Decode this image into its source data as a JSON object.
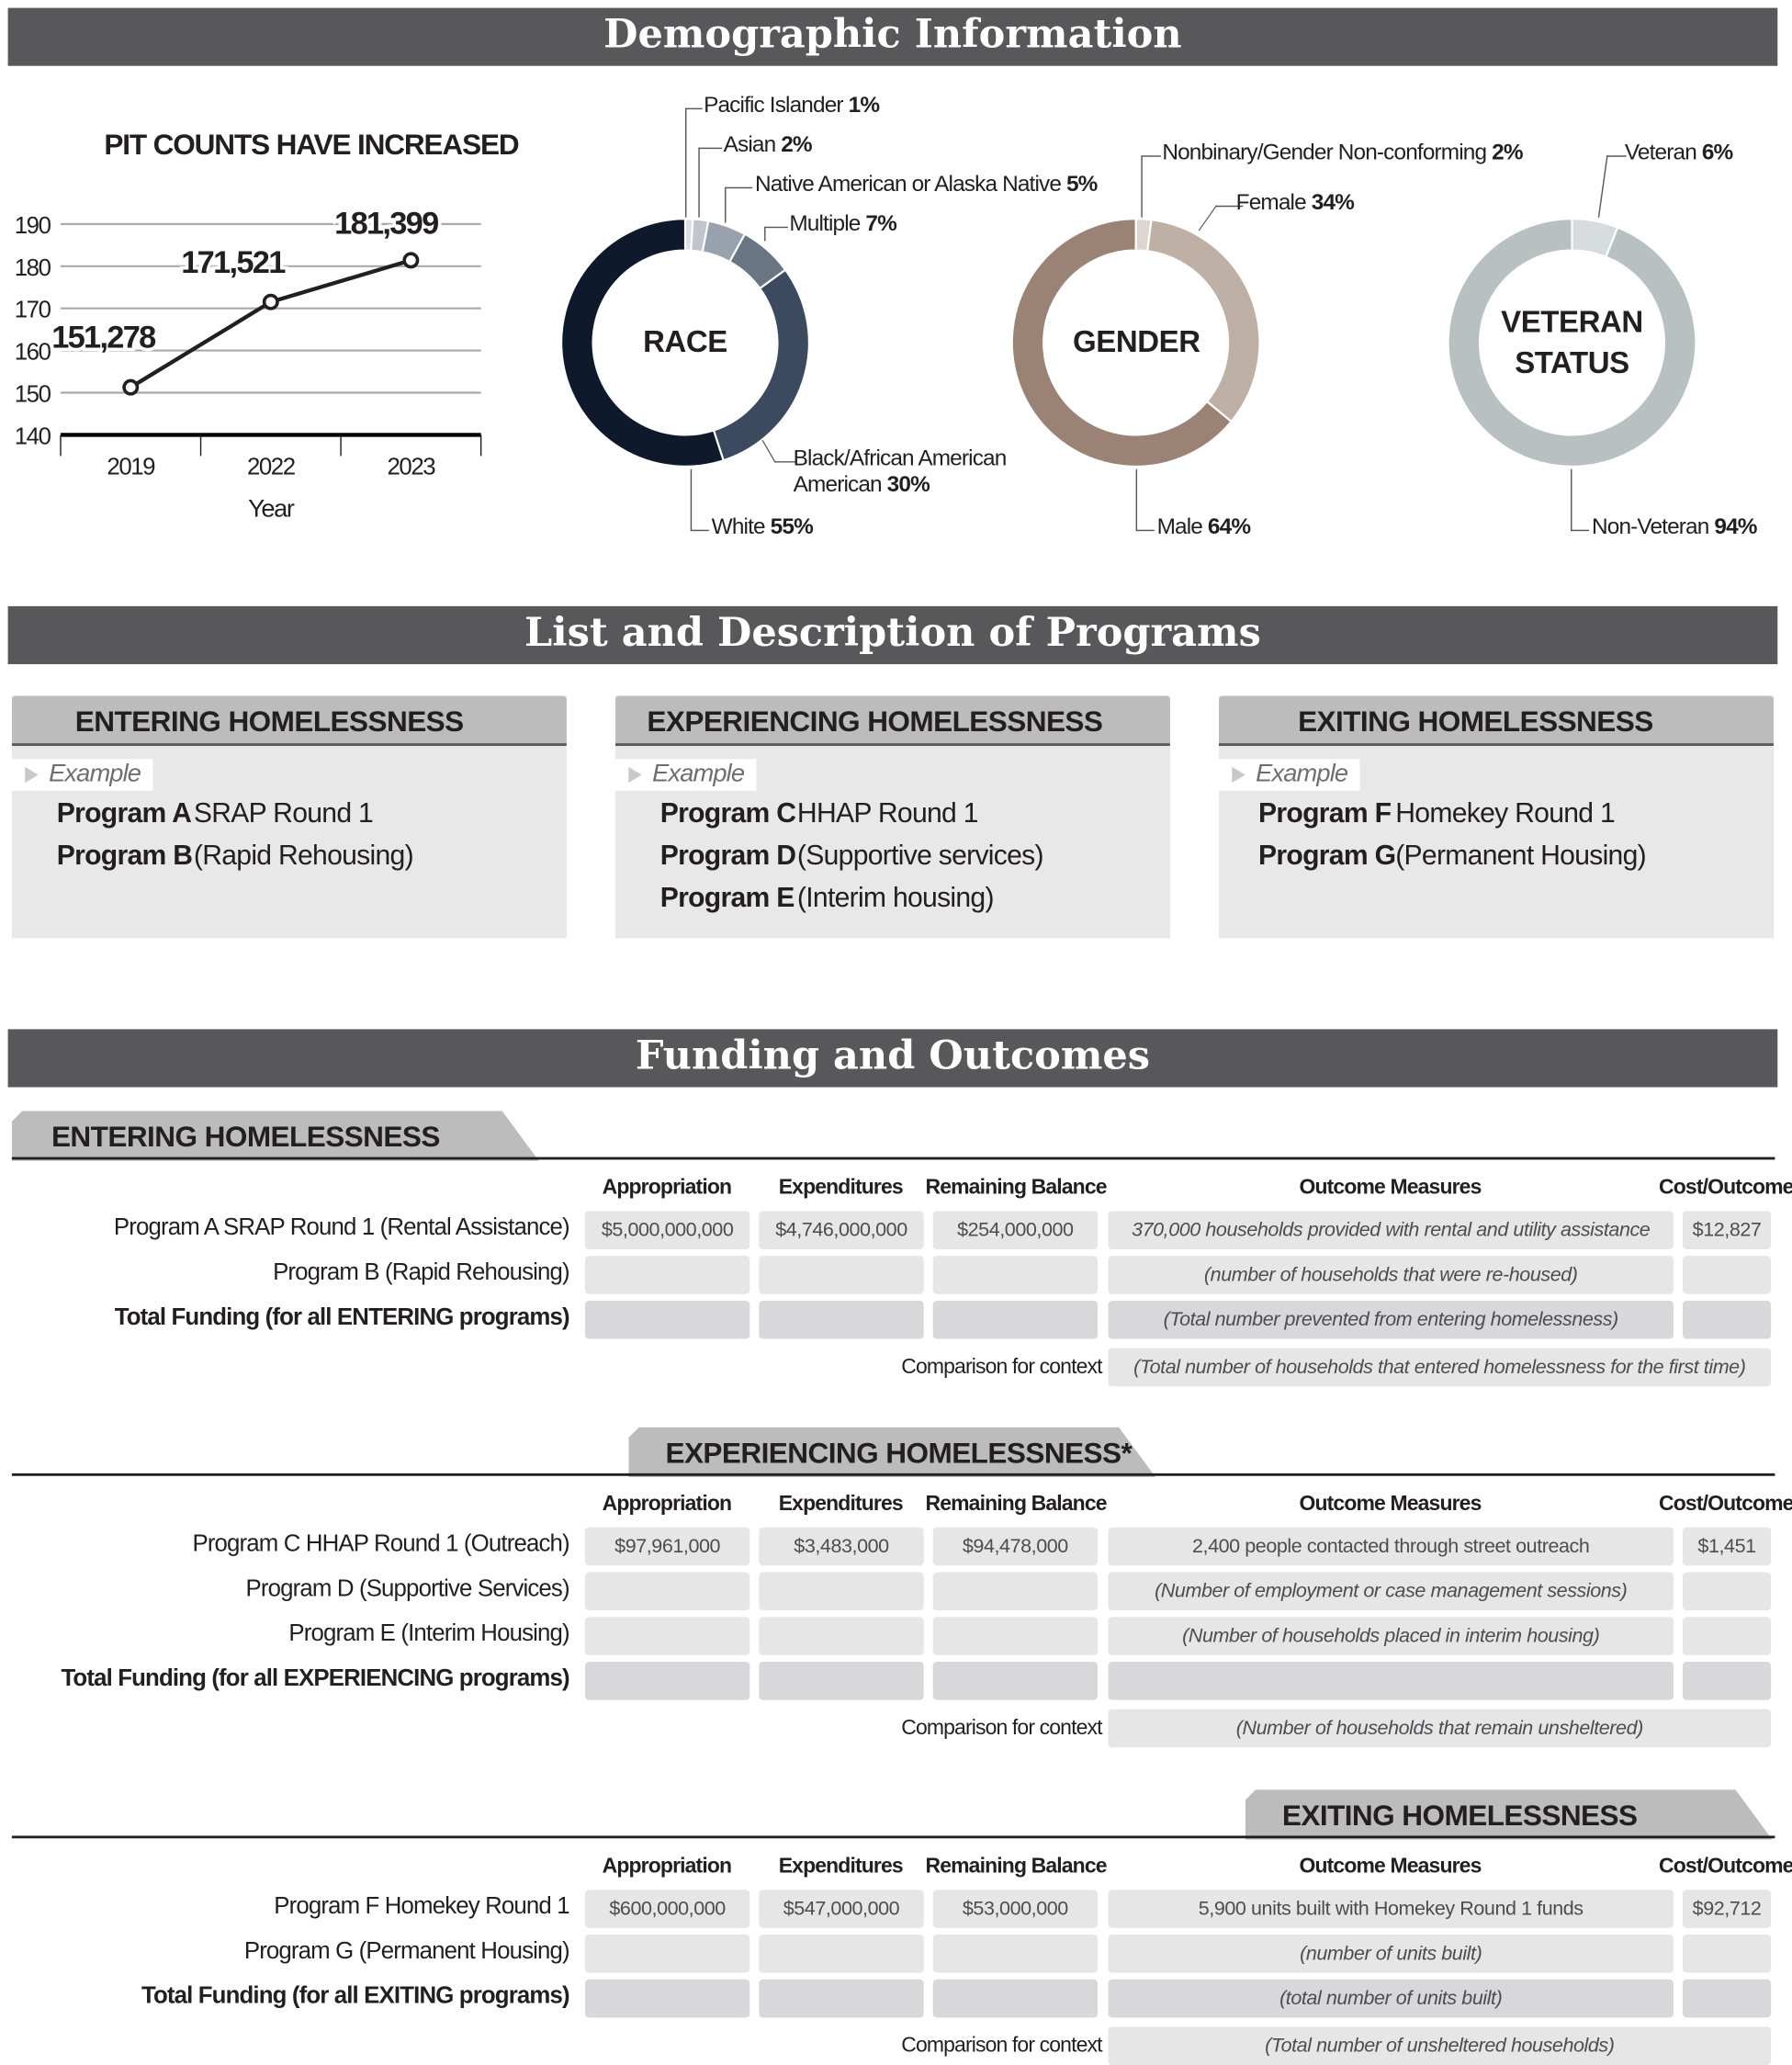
{
  "sections": {
    "demographics": "Demographic Information",
    "programs": "List and Description of Programs",
    "funding": "Funding and Outcomes"
  },
  "chart_data": [
    {
      "type": "line",
      "title": "PIT COUNTS HAVE INCREASED",
      "xlabel": "Year",
      "ylabel": "",
      "categories": [
        "2019",
        "2022",
        "2023"
      ],
      "values": [
        151278,
        171521,
        181399
      ],
      "data_labels": [
        "151,278",
        "171,521",
        "181,399"
      ],
      "yticks": [
        "140",
        "150",
        "160",
        "170",
        "180",
        "190"
      ],
      "ylim": [
        140,
        190
      ],
      "y_units": "thousands",
      "grid": true,
      "color": "#231f20"
    },
    {
      "type": "pie",
      "title": "RACE",
      "slices": [
        {
          "label": "Pacific Islander",
          "pct_label": "1%",
          "value": 1,
          "color": "#dcdfe3"
        },
        {
          "label": "Asian",
          "pct_label": "2%",
          "value": 2,
          "color": "#c1c6cd"
        },
        {
          "label": "Native American or Alaska Native",
          "pct_label": "5%",
          "value": 5,
          "color": "#98a1ad"
        },
        {
          "label": "Multiple",
          "pct_label": "7%",
          "value": 7,
          "color": "#6a7584"
        },
        {
          "label": "Black/African American",
          "pct_label": "30%",
          "value": 30,
          "color": "#3b4a5e"
        },
        {
          "label": "White",
          "pct_label": "55%",
          "value": 55,
          "color": "#0e1a2c"
        }
      ]
    },
    {
      "type": "pie",
      "title": "GENDER",
      "slices": [
        {
          "label": "Nonbinary/Gender Non-conforming",
          "pct_label": "2%",
          "value": 2,
          "color": "#ddd5cf"
        },
        {
          "label": "Female",
          "pct_label": "34%",
          "value": 34,
          "color": "#bfb0a6"
        },
        {
          "label": "Male",
          "pct_label": "64%",
          "value": 64,
          "color": "#9a8375"
        }
      ]
    },
    {
      "type": "pie",
      "title_line1": "VETERAN",
      "title_line2": "STATUS",
      "slices": [
        {
          "label": "Veteran",
          "pct_label": "6%",
          "value": 6,
          "color": "#d6dbdd"
        },
        {
          "label": "Non-Veteran",
          "pct_label": "94%",
          "value": 94,
          "color": "#b8c0c2"
        }
      ]
    }
  ],
  "program_cards": [
    {
      "title": "ENTERING HOMELESSNESS",
      "example": "Example",
      "rows": [
        {
          "name": "Program A",
          "desc": "SRAP Round 1"
        },
        {
          "name": "Program B",
          "desc": "(Rapid Rehousing)"
        }
      ]
    },
    {
      "title": "EXPERIENCING HOMELESSNESS",
      "example": "Example",
      "rows": [
        {
          "name": "Program C",
          "desc": "HHAP Round 1"
        },
        {
          "name": "Program D",
          "desc": "(Supportive services)"
        },
        {
          "name": "Program E",
          "desc": "(Interim housing)"
        }
      ]
    },
    {
      "title": "EXITING HOMELESSNESS",
      "example": "Example",
      "rows": [
        {
          "name": "Program F",
          "desc": "Homekey Round 1"
        },
        {
          "name": "Program G",
          "desc": "(Permanent Housing)"
        }
      ]
    }
  ],
  "columns": [
    "Appropriation",
    "Expenditures",
    "Remaining Balance",
    "Outcome Measures",
    "Cost/Outcome"
  ],
  "comparison_label": "Comparison for context",
  "funding_tables": [
    {
      "title": "ENTERING HOMELESSNESS",
      "rows": [
        {
          "label": "Program A SRAP Round 1 (Rental Assistance)",
          "bold": false,
          "appropriation": "$5,000,000,000",
          "expenditures": "$4,746,000,000",
          "remaining": "$254,000,000",
          "outcome": "370,000 households provided with rental and utility assistance",
          "outcome_italic": true,
          "cost": "$12,827"
        },
        {
          "label": "Program B (Rapid Rehousing)",
          "bold": false,
          "appropriation": "",
          "expenditures": "",
          "remaining": "",
          "outcome": "(number of households that were re-housed)",
          "outcome_italic": true,
          "cost": ""
        },
        {
          "label": "Total Funding (for all ENTERING programs)",
          "bold": true,
          "appropriation": "",
          "expenditures": "",
          "remaining": "",
          "outcome": "(Total number prevented from entering homelessness)",
          "outcome_italic": true,
          "cost": ""
        }
      ],
      "comparison": "(Total number of households that entered homelessness for the first time)"
    },
    {
      "title": "EXPERIENCING HOMELESSNESS*",
      "rows": [
        {
          "label": "Program C HHAP Round 1 (Outreach)",
          "bold": false,
          "appropriation": "$97,961,000",
          "expenditures": "$3,483,000",
          "remaining": "$94,478,000",
          "outcome": "2,400 people contacted through street outreach",
          "outcome_italic": false,
          "cost": "$1,451"
        },
        {
          "label": "Program D (Supportive Services)",
          "bold": false,
          "appropriation": "",
          "expenditures": "",
          "remaining": "",
          "outcome": "(Number of employment or case management sessions)",
          "outcome_italic": true,
          "cost": ""
        },
        {
          "label": "Program E (Interim Housing)",
          "bold": false,
          "appropriation": "",
          "expenditures": "",
          "remaining": "",
          "outcome": "(Number of households placed in interim housing)",
          "outcome_italic": true,
          "cost": ""
        },
        {
          "label": "Total Funding (for all EXPERIENCING programs)",
          "bold": true,
          "appropriation": "",
          "expenditures": "",
          "remaining": "",
          "outcome": "",
          "outcome_italic": false,
          "cost": ""
        }
      ],
      "comparison": "(Number of households that remain unsheltered)"
    },
    {
      "title": "EXITING HOMELESSNESS",
      "rows": [
        {
          "label": "Program F Homekey Round 1",
          "bold": false,
          "appropriation": "$600,000,000",
          "expenditures": "$547,000,000",
          "remaining": "$53,000,000",
          "outcome": "5,900 units built with Homekey Round 1 funds",
          "outcome_italic": false,
          "cost": "$92,712"
        },
        {
          "label": "Program G (Permanent Housing)",
          "bold": false,
          "appropriation": "",
          "expenditures": "",
          "remaining": "",
          "outcome": "(number of units built)",
          "outcome_italic": true,
          "cost": ""
        },
        {
          "label": "Total Funding (for all EXITING programs)",
          "bold": true,
          "appropriation": "",
          "expenditures": "",
          "remaining": "",
          "outcome": "(total number of units built)",
          "outcome_italic": true,
          "cost": ""
        }
      ],
      "comparison": "(Total number of unsheltered households)"
    }
  ]
}
